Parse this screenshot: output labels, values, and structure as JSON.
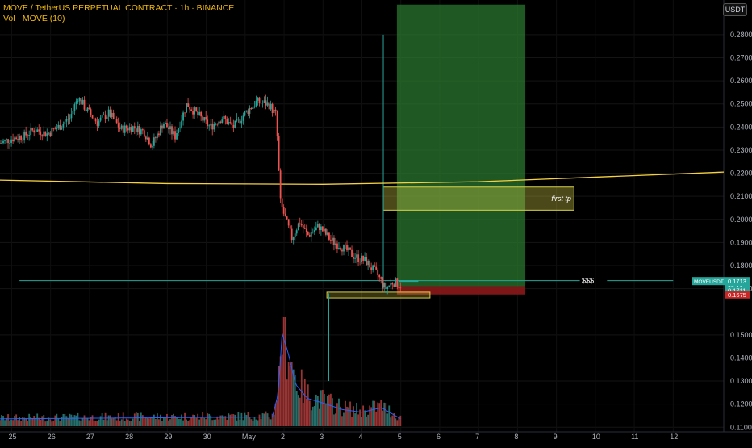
{
  "header": {
    "title": "MOVE / TetherUS PERPETUAL CONTRACT · 1h · BINANCE",
    "volume_label": "Vol · MOVE (10)",
    "currency_button": "USDT"
  },
  "colors": {
    "background": "#000000",
    "up": "#26a69a",
    "down": "#ef5350",
    "volume_up": "#2a7a74",
    "volume_down": "#a83a3a",
    "ma_line": "#f5d142",
    "vol_ma": "#2962ff",
    "target_zone": "#2e7d32",
    "stop_zone": "#8b1a1a",
    "highlight_box": "#d6d14a"
  },
  "annotations": {
    "first_tp": "first tp",
    "liquidity": "$$$"
  },
  "price_tags": {
    "symbol": "MOVEUSDT.P",
    "last_price": "0.1713",
    "countdown": "08:44",
    "entry": "0.1711",
    "stop": "0.1675"
  },
  "chart_data": {
    "type": "candlestick",
    "title": "MOVE / TetherUS PERPETUAL CONTRACT · 1h · BINANCE",
    "x_ticks": [
      "25",
      "26",
      "27",
      "28",
      "29",
      "30",
      "May",
      "2",
      "3",
      "4",
      "5",
      "6",
      "7",
      "8",
      "9",
      "10",
      "11",
      "12"
    ],
    "y_ticks": [
      "0.2800",
      "0.2700",
      "0.2600",
      "0.2500",
      "0.2400",
      "0.2300",
      "0.2200",
      "0.2100",
      "0.2000",
      "0.1900",
      "0.1800",
      "0.1700",
      "0.1500",
      "0.1400",
      "0.1300",
      "0.1200",
      "0.1100"
    ],
    "ylim": [
      0.108,
      0.295
    ],
    "x_domain": [
      24.7,
      12.3
    ],
    "grid": true,
    "price_path": [
      {
        "t": 24.7,
        "p": 0.233
      },
      {
        "t": 25.0,
        "p": 0.235
      },
      {
        "t": 25.3,
        "p": 0.236
      },
      {
        "t": 25.6,
        "p": 0.239
      },
      {
        "t": 25.9,
        "p": 0.237
      },
      {
        "t": 26.2,
        "p": 0.24
      },
      {
        "t": 26.5,
        "p": 0.244
      },
      {
        "t": 26.7,
        "p": 0.253
      },
      {
        "t": 26.9,
        "p": 0.248
      },
      {
        "t": 27.2,
        "p": 0.242
      },
      {
        "t": 27.5,
        "p": 0.246
      },
      {
        "t": 27.8,
        "p": 0.239
      },
      {
        "t": 28.1,
        "p": 0.24
      },
      {
        "t": 28.4,
        "p": 0.238
      },
      {
        "t": 28.6,
        "p": 0.232
      },
      {
        "t": 28.9,
        "p": 0.242
      },
      {
        "t": 29.2,
        "p": 0.236
      },
      {
        "t": 29.5,
        "p": 0.25
      },
      {
        "t": 29.8,
        "p": 0.245
      },
      {
        "t": 30.1,
        "p": 0.24
      },
      {
        "t": 30.4,
        "p": 0.244
      },
      {
        "t": 30.7,
        "p": 0.24
      },
      {
        "t": 31.0,
        "p": 0.246
      },
      {
        "t": 31.3,
        "p": 0.251
      },
      {
        "t": 31.6,
        "p": 0.25
      },
      {
        "t": 31.8,
        "p": 0.245
      },
      {
        "t": 31.9,
        "p": 0.208
      },
      {
        "t": 32.0,
        "p": 0.202
      },
      {
        "t": 32.2,
        "p": 0.192
      },
      {
        "t": 32.4,
        "p": 0.199
      },
      {
        "t": 32.6,
        "p": 0.193
      },
      {
        "t": 32.9,
        "p": 0.197
      },
      {
        "t": 33.2,
        "p": 0.191
      },
      {
        "t": 33.5,
        "p": 0.188
      },
      {
        "t": 33.8,
        "p": 0.184
      },
      {
        "t": 34.1,
        "p": 0.182
      },
      {
        "t": 34.4,
        "p": 0.176
      },
      {
        "t": 34.6,
        "p": 0.17
      },
      {
        "t": 34.8,
        "p": 0.173
      },
      {
        "t": 35.0,
        "p": 0.1713
      }
    ],
    "volume_path": [
      {
        "t": 24.7,
        "v": 0.08
      },
      {
        "t": 31.7,
        "v": 0.1
      },
      {
        "t": 31.85,
        "v": 0.35
      },
      {
        "t": 31.95,
        "v": 1.0
      },
      {
        "t": 32.1,
        "v": 0.8
      },
      {
        "t": 32.3,
        "v": 0.45
      },
      {
        "t": 32.6,
        "v": 0.3
      },
      {
        "t": 33.0,
        "v": 0.25
      },
      {
        "t": 33.5,
        "v": 0.18
      },
      {
        "t": 34.0,
        "v": 0.15
      },
      {
        "t": 34.5,
        "v": 0.2
      },
      {
        "t": 35.0,
        "v": 0.08
      }
    ],
    "ma_line": [
      {
        "t": 24.7,
        "p": 0.217
      },
      {
        "t": 29.0,
        "p": 0.2155
      },
      {
        "t": 33.0,
        "p": 0.2152
      },
      {
        "t": 37.0,
        "p": 0.2163
      },
      {
        "t": 40.0,
        "p": 0.2183
      },
      {
        "t": 43.3,
        "p": 0.2205
      }
    ],
    "position": {
      "t_start": 34.9,
      "t_end": 38.2,
      "target": 0.293,
      "entry": 0.1711,
      "stop": 0.1675,
      "target_label_box": {
        "t_start": 34.55,
        "t_end": 39.45,
        "p_high": 0.214,
        "p_low": 0.204
      }
    },
    "liquidity_line": {
      "price": 0.1735,
      "t_start": 25.2,
      "t_end": 42.0
    },
    "lows_box": {
      "t_start": 33.1,
      "t_end": 35.75,
      "p_high": 0.1685,
      "p_low": 0.166
    },
    "vertical_markers": [
      {
        "t": 33.15,
        "p_from": 0.13,
        "p_to": 0.168
      },
      {
        "t": 34.55,
        "p_from": 0.17,
        "p_to": 0.28
      }
    ]
  }
}
